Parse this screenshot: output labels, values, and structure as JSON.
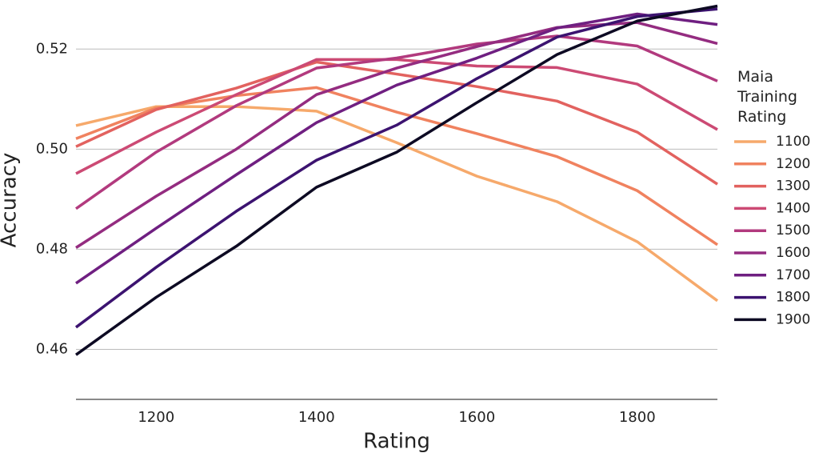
{
  "chart_data": {
    "type": "line",
    "x_label": "Rating",
    "y_label": "Accuracy",
    "legend_title": "Maia Training Rating",
    "x": [
      1100,
      1200,
      1300,
      1400,
      1500,
      1600,
      1700,
      1800,
      1900
    ],
    "xlim": [
      1100,
      1900
    ],
    "xticks": [
      1200,
      1400,
      1600,
      1800
    ],
    "ylim": [
      0.45,
      0.529
    ],
    "yticks": [
      0.46,
      0.48,
      {
        "value": 0.5,
        "label": "0.50"
      },
      0.52
    ],
    "grid": true,
    "legend": "right",
    "series": [
      {
        "name": "1100",
        "color": "#f6a96b",
        "values": [
          0.5047,
          0.5085,
          0.5085,
          0.5076,
          0.5013,
          0.4946,
          0.4895,
          0.4815,
          0.4697
        ]
      },
      {
        "name": "1200",
        "color": "#f0825f",
        "values": [
          0.5021,
          0.5082,
          0.5107,
          0.5123,
          0.5074,
          0.5031,
          0.4985,
          0.4917,
          0.4809
        ]
      },
      {
        "name": "1300",
        "color": "#e2625f",
        "values": [
          0.5005,
          0.5079,
          0.5122,
          0.5174,
          0.515,
          0.5125,
          0.5096,
          0.5034,
          0.493
        ]
      },
      {
        "name": "1400",
        "color": "#cc4a74",
        "values": [
          0.4951,
          0.5034,
          0.5109,
          0.5179,
          0.5179,
          0.5166,
          0.5163,
          0.513,
          0.5039
        ]
      },
      {
        "name": "1500",
        "color": "#b23a7e",
        "values": [
          0.4881,
          0.4994,
          0.5087,
          0.5162,
          0.5182,
          0.521,
          0.5226,
          0.5206,
          0.5136
        ]
      },
      {
        "name": "1600",
        "color": "#942c80",
        "values": [
          0.4803,
          0.4906,
          0.5,
          0.5109,
          0.5162,
          0.5205,
          0.5243,
          0.5253,
          0.5211
        ]
      },
      {
        "name": "1700",
        "color": "#6f1f81",
        "values": [
          0.4732,
          0.4842,
          0.4949,
          0.5053,
          0.5128,
          0.5182,
          0.5242,
          0.527,
          0.5249
        ]
      },
      {
        "name": "1800",
        "color": "#3c1370",
        "values": [
          0.4644,
          0.4764,
          0.4876,
          0.4978,
          0.5048,
          0.5141,
          0.5224,
          0.5265,
          0.528
        ]
      },
      {
        "name": "1900",
        "color": "#0d0a23",
        "values": [
          0.4589,
          0.4704,
          0.4806,
          0.4924,
          0.4994,
          0.5093,
          0.5189,
          0.5256,
          0.5286
        ]
      }
    ]
  }
}
